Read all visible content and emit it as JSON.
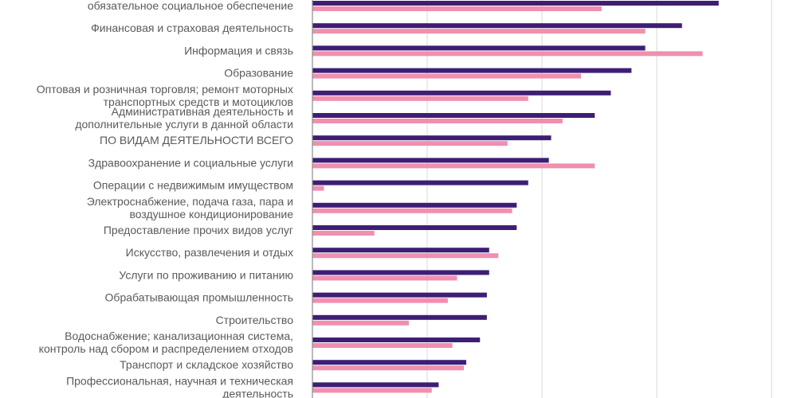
{
  "chart_data": {
    "type": "bar",
    "orientation": "horizontal",
    "grid": true,
    "title": "",
    "xlabel": "",
    "ylabel": "",
    "xlim": [
      0,
      210
    ],
    "colors": [
      "#3e1e74",
      "#f08fb0"
    ],
    "categories": [
      [
        "обязательное социальное обеспечение"
      ],
      [
        "Финансовая и страховая деятельность"
      ],
      [
        "Информация и связь"
      ],
      [
        "Образование"
      ],
      [
        "Оптовая и розничная торговля; ремонт моторных",
        "транспортных средств и мотоциклов"
      ],
      [
        "Административная деятельность и",
        "дополнительные услуги в данной области"
      ],
      [
        "ПО ВИДАМ ДЕЯТЕЛЬНОСТИ ВСЕГО"
      ],
      [
        "Здравоохранение и социальные услуги"
      ],
      [
        "Операции с недвижимым имуществом"
      ],
      [
        "Электроснабжение, подача газа, пара и",
        "воздушное кондиционирование"
      ],
      [
        "Предоставление прочих видов услуг"
      ],
      [
        "Искусство, развлечения и отдых"
      ],
      [
        "Услуги по проживанию и питанию"
      ],
      [
        "Обрабатывающая промышленность"
      ],
      [
        "Строительство"
      ],
      [
        "Водоснабжение; канализационная система,",
        "контроль над сбором и распределением отходов"
      ],
      [
        "Транспорт и складское хозяйство"
      ],
      [
        "Профессиональная, научная и техническая",
        "деятельность"
      ]
    ],
    "series": [
      {
        "values": [
          177,
          161,
          145,
          139,
          130,
          123,
          104,
          103,
          94,
          89,
          89,
          77,
          77,
          76,
          76,
          73,
          67,
          55
        ]
      },
      {
        "values": [
          126,
          145,
          170,
          117,
          94,
          109,
          85,
          123,
          5,
          87,
          27,
          81,
          63,
          59,
          42,
          61,
          66,
          52
        ]
      }
    ]
  }
}
